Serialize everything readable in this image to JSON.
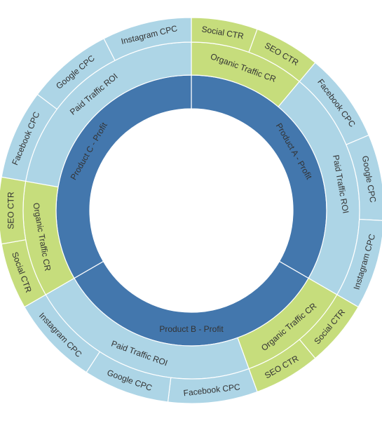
{
  "chart_data": {
    "type": "sunburst",
    "colors": {
      "root": "#4377ad",
      "paid": "#add5e6",
      "organic": "#c6dd7c",
      "label": "#333333",
      "border": "#ffffff"
    },
    "rings": [
      [
        {
          "label": "Product A - Profit",
          "start": 0,
          "end": 120,
          "color": "root"
        },
        {
          "label": "Product B - Profit",
          "start": 120,
          "end": 240,
          "color": "root"
        },
        {
          "label": "Product C - Profit",
          "start": 240,
          "end": 360,
          "color": "root"
        }
      ],
      [
        {
          "label": "Organic Traffic CR",
          "start": 0,
          "end": 40,
          "color": "organic"
        },
        {
          "label": "Paid Traffic ROI",
          "start": 40,
          "end": 120,
          "color": "paid"
        },
        {
          "label": "Organic Traffic CR",
          "start": 120,
          "end": 160,
          "color": "organic"
        },
        {
          "label": "Paid Traffic ROI",
          "start": 160,
          "end": 240,
          "color": "paid"
        },
        {
          "label": "Organic Traffic CR",
          "start": 240,
          "end": 280,
          "color": "organic"
        },
        {
          "label": "Paid Traffic ROI",
          "start": 280,
          "end": 360,
          "color": "paid"
        }
      ],
      [
        {
          "label": "Social CTR",
          "start": 0,
          "end": 20,
          "color": "organic"
        },
        {
          "label": "SEO CTR",
          "start": 20,
          "end": 40,
          "color": "organic"
        },
        {
          "label": "Facebook CPC",
          "start": 40,
          "end": 67,
          "color": "paid"
        },
        {
          "label": "Google CPC",
          "start": 67,
          "end": 93,
          "color": "paid"
        },
        {
          "label": "Instagram CPC",
          "start": 93,
          "end": 120,
          "color": "paid"
        },
        {
          "label": "Social CTR",
          "start": 120,
          "end": 140,
          "color": "organic"
        },
        {
          "label": "SEO CTR",
          "start": 140,
          "end": 160,
          "color": "organic"
        },
        {
          "label": "Facebook CPC",
          "start": 160,
          "end": 187,
          "color": "paid"
        },
        {
          "label": "Google CPC",
          "start": 187,
          "end": 213,
          "color": "paid"
        },
        {
          "label": "Instagram CPC",
          "start": 213,
          "end": 240,
          "color": "paid"
        },
        {
          "label": "Social CTR",
          "start": 240,
          "end": 260,
          "color": "organic"
        },
        {
          "label": "SEO CTR",
          "start": 260,
          "end": 280,
          "color": "organic"
        },
        {
          "label": "Facebook CPC",
          "start": 280,
          "end": 307,
          "color": "paid"
        },
        {
          "label": "Google CPC",
          "start": 307,
          "end": 333,
          "color": "paid"
        },
        {
          "label": "Instagram CPC",
          "start": 333,
          "end": 360,
          "color": "paid"
        }
      ]
    ]
  }
}
